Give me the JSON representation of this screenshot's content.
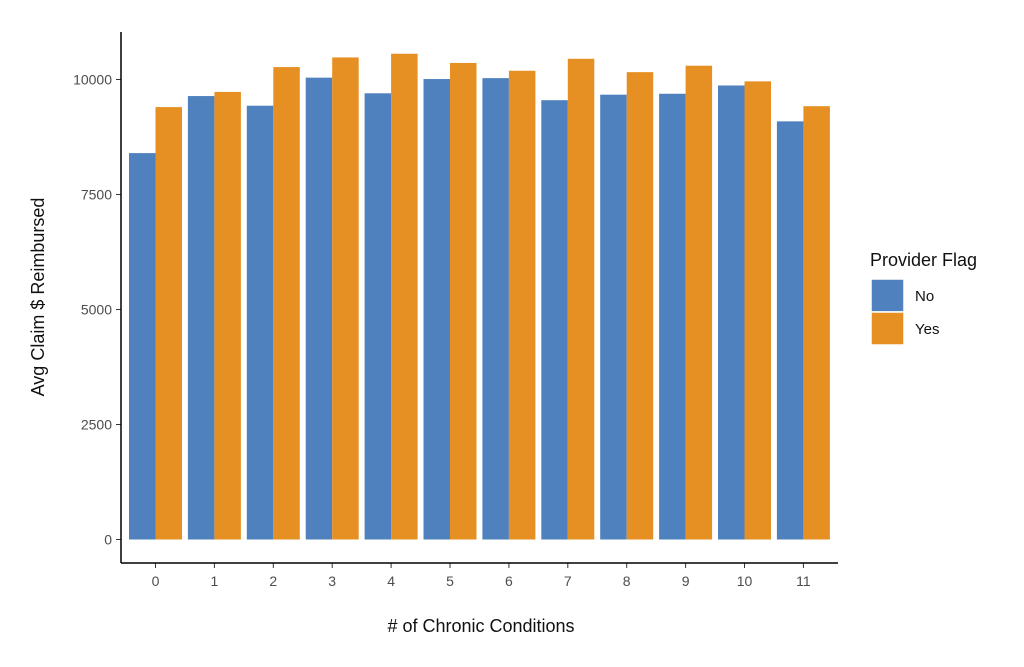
{
  "chart_data": {
    "type": "bar",
    "xlabel": "# of Chronic Conditions",
    "ylabel": "Avg Claim $ Reimbursed",
    "categories": [
      "0",
      "1",
      "2",
      "3",
      "4",
      "5",
      "6",
      "7",
      "8",
      "9",
      "10",
      "11"
    ],
    "series": [
      {
        "name": "No",
        "color": "#4e81bd",
        "values": [
          8400,
          9640,
          9430,
          10040,
          9700,
          10010,
          10030,
          9550,
          9670,
          9690,
          9870,
          9090
        ]
      },
      {
        "name": "Yes",
        "color": "#e69023",
        "values": [
          9400,
          9730,
          10270,
          10480,
          10560,
          10360,
          10190,
          10450,
          10160,
          10300,
          9960,
          9420
        ]
      }
    ],
    "ylim": [
      0,
      11000
    ],
    "yticks": [
      0,
      2500,
      5000,
      7500,
      10000
    ],
    "ytick_labels": [
      "0",
      "2500",
      "5000",
      "7500",
      "10000"
    ],
    "grid": false,
    "legend": {
      "title": "Provider Flag",
      "placement": "right"
    }
  }
}
